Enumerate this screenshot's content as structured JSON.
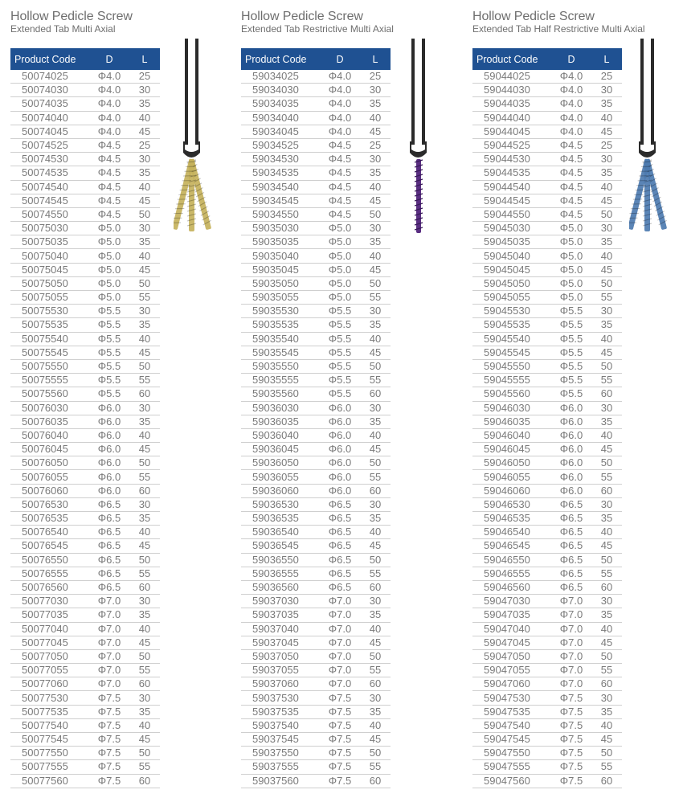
{
  "headers": {
    "code": "Product Code",
    "d": "D",
    "l": "L"
  },
  "products": [
    {
      "title": "Hollow Pedicle Screw",
      "subtitle": "Extended Tab Multi Axial",
      "color": "#c6b25c",
      "rows": [
        [
          "50074025",
          "Φ4.0",
          "25"
        ],
        [
          "50074030",
          "Φ4.0",
          "30"
        ],
        [
          "50074035",
          "Φ4.0",
          "35"
        ],
        [
          "50074040",
          "Φ4.0",
          "40"
        ],
        [
          "50074045",
          "Φ4.0",
          "45"
        ],
        [
          "50074525",
          "Φ4.5",
          "25"
        ],
        [
          "50074530",
          "Φ4.5",
          "30"
        ],
        [
          "50074535",
          "Φ4.5",
          "35"
        ],
        [
          "50074540",
          "Φ4.5",
          "40"
        ],
        [
          "50074545",
          "Φ4.5",
          "45"
        ],
        [
          "50074550",
          "Φ4.5",
          "50"
        ],
        [
          "50075030",
          "Φ5.0",
          "30"
        ],
        [
          "50075035",
          "Φ5.0",
          "35"
        ],
        [
          "50075040",
          "Φ5.0",
          "40"
        ],
        [
          "50075045",
          "Φ5.0",
          "45"
        ],
        [
          "50075050",
          "Φ5.0",
          "50"
        ],
        [
          "50075055",
          "Φ5.0",
          "55"
        ],
        [
          "50075530",
          "Φ5.5",
          "30"
        ],
        [
          "50075535",
          "Φ5.5",
          "35"
        ],
        [
          "50075540",
          "Φ5.5",
          "40"
        ],
        [
          "50075545",
          "Φ5.5",
          "45"
        ],
        [
          "50075550",
          "Φ5.5",
          "50"
        ],
        [
          "50075555",
          "Φ5.5",
          "55"
        ],
        [
          "50075560",
          "Φ5.5",
          "60"
        ],
        [
          "50076030",
          "Φ6.0",
          "30"
        ],
        [
          "50076035",
          "Φ6.0",
          "35"
        ],
        [
          "50076040",
          "Φ6.0",
          "40"
        ],
        [
          "50076045",
          "Φ6.0",
          "45"
        ],
        [
          "50076050",
          "Φ6.0",
          "50"
        ],
        [
          "50076055",
          "Φ6.0",
          "55"
        ],
        [
          "50076060",
          "Φ6.0",
          "60"
        ],
        [
          "50076530",
          "Φ6.5",
          "30"
        ],
        [
          "50076535",
          "Φ6.5",
          "35"
        ],
        [
          "50076540",
          "Φ6.5",
          "40"
        ],
        [
          "50076545",
          "Φ6.5",
          "45"
        ],
        [
          "50076550",
          "Φ6.5",
          "50"
        ],
        [
          "50076555",
          "Φ6.5",
          "55"
        ],
        [
          "50076560",
          "Φ6.5",
          "60"
        ],
        [
          "50077030",
          "Φ7.0",
          "30"
        ],
        [
          "50077035",
          "Φ7.0",
          "35"
        ],
        [
          "50077040",
          "Φ7.0",
          "40"
        ],
        [
          "50077045",
          "Φ7.0",
          "45"
        ],
        [
          "50077050",
          "Φ7.0",
          "50"
        ],
        [
          "50077055",
          "Φ7.0",
          "55"
        ],
        [
          "50077060",
          "Φ7.0",
          "60"
        ],
        [
          "50077530",
          "Φ7.5",
          "30"
        ],
        [
          "50077535",
          "Φ7.5",
          "35"
        ],
        [
          "50077540",
          "Φ7.5",
          "40"
        ],
        [
          "50077545",
          "Φ7.5",
          "45"
        ],
        [
          "50077550",
          "Φ7.5",
          "50"
        ],
        [
          "50077555",
          "Φ7.5",
          "55"
        ],
        [
          "50077560",
          "Φ7.5",
          "60"
        ]
      ]
    },
    {
      "title": "Hollow Pedicle Screw",
      "subtitle": "Extended Tab Restrictive Multi Axial",
      "color": "#5a2e82",
      "rows": [
        [
          "59034025",
          "Φ4.0",
          "25"
        ],
        [
          "59034030",
          "Φ4.0",
          "30"
        ],
        [
          "59034035",
          "Φ4.0",
          "35"
        ],
        [
          "59034040",
          "Φ4.0",
          "40"
        ],
        [
          "59034045",
          "Φ4.0",
          "45"
        ],
        [
          "59034525",
          "Φ4.5",
          "25"
        ],
        [
          "59034530",
          "Φ4.5",
          "30"
        ],
        [
          "59034535",
          "Φ4.5",
          "35"
        ],
        [
          "59034540",
          "Φ4.5",
          "40"
        ],
        [
          "59034545",
          "Φ4.5",
          "45"
        ],
        [
          "59034550",
          "Φ4.5",
          "50"
        ],
        [
          "59035030",
          "Φ5.0",
          "30"
        ],
        [
          "59035035",
          "Φ5.0",
          "35"
        ],
        [
          "59035040",
          "Φ5.0",
          "40"
        ],
        [
          "59035045",
          "Φ5.0",
          "45"
        ],
        [
          "59035050",
          "Φ5.0",
          "50"
        ],
        [
          "59035055",
          "Φ5.0",
          "55"
        ],
        [
          "59035530",
          "Φ5.5",
          "30"
        ],
        [
          "59035535",
          "Φ5.5",
          "35"
        ],
        [
          "59035540",
          "Φ5.5",
          "40"
        ],
        [
          "59035545",
          "Φ5.5",
          "45"
        ],
        [
          "59035550",
          "Φ5.5",
          "50"
        ],
        [
          "59035555",
          "Φ5.5",
          "55"
        ],
        [
          "59035560",
          "Φ5.5",
          "60"
        ],
        [
          "59036030",
          "Φ6.0",
          "30"
        ],
        [
          "59036035",
          "Φ6.0",
          "35"
        ],
        [
          "59036040",
          "Φ6.0",
          "40"
        ],
        [
          "59036045",
          "Φ6.0",
          "45"
        ],
        [
          "59036050",
          "Φ6.0",
          "50"
        ],
        [
          "59036055",
          "Φ6.0",
          "55"
        ],
        [
          "59036060",
          "Φ6.0",
          "60"
        ],
        [
          "59036530",
          "Φ6.5",
          "30"
        ],
        [
          "59036535",
          "Φ6.5",
          "35"
        ],
        [
          "59036540",
          "Φ6.5",
          "40"
        ],
        [
          "59036545",
          "Φ6.5",
          "45"
        ],
        [
          "59036550",
          "Φ6.5",
          "50"
        ],
        [
          "59036555",
          "Φ6.5",
          "55"
        ],
        [
          "59036560",
          "Φ6.5",
          "60"
        ],
        [
          "59037030",
          "Φ7.0",
          "30"
        ],
        [
          "59037035",
          "Φ7.0",
          "35"
        ],
        [
          "59037040",
          "Φ7.0",
          "40"
        ],
        [
          "59037045",
          "Φ7.0",
          "45"
        ],
        [
          "59037050",
          "Φ7.0",
          "50"
        ],
        [
          "59037055",
          "Φ7.0",
          "55"
        ],
        [
          "59037060",
          "Φ7.0",
          "60"
        ],
        [
          "59037530",
          "Φ7.5",
          "30"
        ],
        [
          "59037535",
          "Φ7.5",
          "35"
        ],
        [
          "59037540",
          "Φ7.5",
          "40"
        ],
        [
          "59037545",
          "Φ7.5",
          "45"
        ],
        [
          "59037550",
          "Φ7.5",
          "50"
        ],
        [
          "59037555",
          "Φ7.5",
          "55"
        ],
        [
          "59037560",
          "Φ7.5",
          "60"
        ]
      ]
    },
    {
      "title": "Hollow Pedicle Screw",
      "subtitle": "Extended Tab  Half Restrictive Multi Axial",
      "color": "#4d7bb0",
      "rows": [
        [
          "59044025",
          "Φ4.0",
          "25"
        ],
        [
          "59044030",
          "Φ4.0",
          "30"
        ],
        [
          "59044035",
          "Φ4.0",
          "35"
        ],
        [
          "59044040",
          "Φ4.0",
          "40"
        ],
        [
          "59044045",
          "Φ4.0",
          "45"
        ],
        [
          "59044525",
          "Φ4.5",
          "25"
        ],
        [
          "59044530",
          "Φ4.5",
          "30"
        ],
        [
          "59044535",
          "Φ4.5",
          "35"
        ],
        [
          "59044540",
          "Φ4.5",
          "40"
        ],
        [
          "59044545",
          "Φ4.5",
          "45"
        ],
        [
          "59044550",
          "Φ4.5",
          "50"
        ],
        [
          "59045030",
          "Φ5.0",
          "30"
        ],
        [
          "59045035",
          "Φ5.0",
          "35"
        ],
        [
          "59045040",
          "Φ5.0",
          "40"
        ],
        [
          "59045045",
          "Φ5.0",
          "45"
        ],
        [
          "59045050",
          "Φ5.0",
          "50"
        ],
        [
          "59045055",
          "Φ5.0",
          "55"
        ],
        [
          "59045530",
          "Φ5.5",
          "30"
        ],
        [
          "59045535",
          "Φ5.5",
          "35"
        ],
        [
          "59045540",
          "Φ5.5",
          "40"
        ],
        [
          "59045545",
          "Φ5.5",
          "45"
        ],
        [
          "59045550",
          "Φ5.5",
          "50"
        ],
        [
          "59045555",
          "Φ5.5",
          "55"
        ],
        [
          "59045560",
          "Φ5.5",
          "60"
        ],
        [
          "59046030",
          "Φ6.0",
          "30"
        ],
        [
          "59046035",
          "Φ6.0",
          "35"
        ],
        [
          "59046040",
          "Φ6.0",
          "40"
        ],
        [
          "59046045",
          "Φ6.0",
          "45"
        ],
        [
          "59046050",
          "Φ6.0",
          "50"
        ],
        [
          "59046055",
          "Φ6.0",
          "55"
        ],
        [
          "59046060",
          "Φ6.0",
          "60"
        ],
        [
          "59046530",
          "Φ6.5",
          "30"
        ],
        [
          "59046535",
          "Φ6.5",
          "35"
        ],
        [
          "59046540",
          "Φ6.5",
          "40"
        ],
        [
          "59046545",
          "Φ6.5",
          "45"
        ],
        [
          "59046550",
          "Φ6.5",
          "50"
        ],
        [
          "59046555",
          "Φ6.5",
          "55"
        ],
        [
          "59046560",
          "Φ6.5",
          "60"
        ],
        [
          "59047030",
          "Φ7.0",
          "30"
        ],
        [
          "59047035",
          "Φ7.0",
          "35"
        ],
        [
          "59047040",
          "Φ7.0",
          "40"
        ],
        [
          "59047045",
          "Φ7.0",
          "45"
        ],
        [
          "59047050",
          "Φ7.0",
          "50"
        ],
        [
          "59047055",
          "Φ7.0",
          "55"
        ],
        [
          "59047060",
          "Φ7.0",
          "60"
        ],
        [
          "59047530",
          "Φ7.5",
          "30"
        ],
        [
          "59047535",
          "Φ7.5",
          "35"
        ],
        [
          "59047540",
          "Φ7.5",
          "40"
        ],
        [
          "59047545",
          "Φ7.5",
          "45"
        ],
        [
          "59047550",
          "Φ7.5",
          "50"
        ],
        [
          "59047555",
          "Φ7.5",
          "55"
        ],
        [
          "59047560",
          "Φ7.5",
          "60"
        ]
      ]
    }
  ]
}
